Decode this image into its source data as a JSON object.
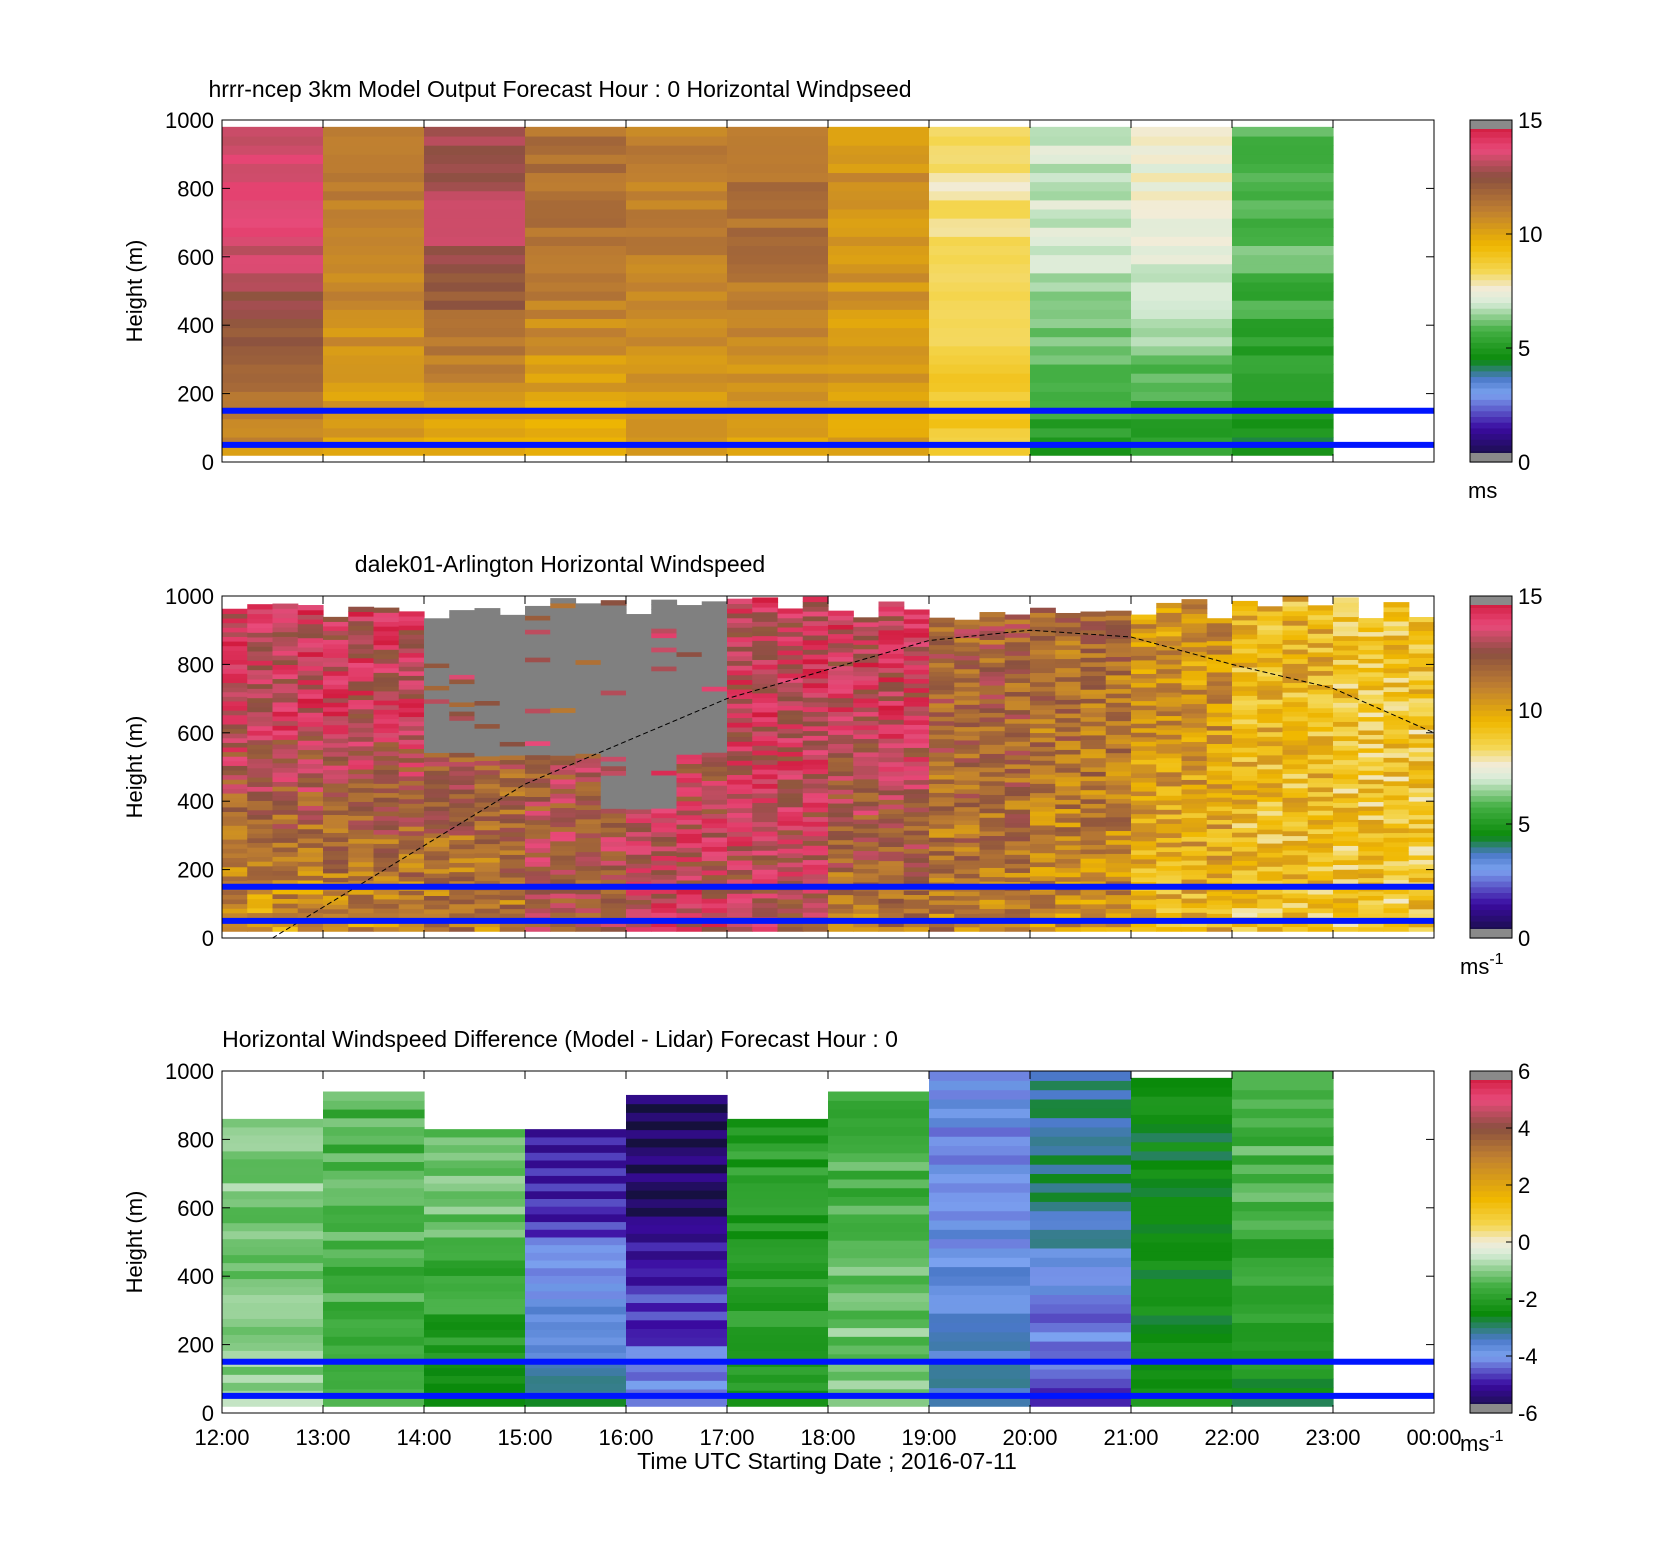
{
  "figure": {
    "xlabel": "Time UTC  Starting Date ; 2016-07-11",
    "xticks": [
      "12:00",
      "13:00",
      "14:00",
      "15:00",
      "16:00",
      "17:00",
      "18:00",
      "19:00",
      "20:00",
      "21:00",
      "22:00",
      "23:00",
      "00:00"
    ],
    "ylabel": "Height (m)",
    "yticks": [
      "0",
      "200",
      "400",
      "600",
      "800",
      "1000"
    ]
  },
  "chart_data": [
    {
      "type": "heatmap",
      "title": "hrrr-ncep 3km Model Output   Forecast Hour : 0 Horizontal Windpseed",
      "xlabel": "",
      "ylabel": "Height (m)",
      "x_range_hours": [
        12,
        24
      ],
      "ylim": [
        0,
        1000
      ],
      "colorbar": {
        "ticks": [
          "0",
          "5",
          "10",
          "15"
        ],
        "range": [
          0,
          15
        ],
        "unit": "ms"
      },
      "reference_lines_m": [
        150,
        50
      ],
      "time_columns": [
        "12:00",
        "13:00",
        "14:00",
        "15:00",
        "16:00",
        "17:00",
        "18:00",
        "19:00",
        "20:00",
        "21:00",
        "22:00"
      ],
      "mean_speed_upper_ms": [
        13.5,
        11.0,
        13.0,
        11.5,
        11.0,
        11.5,
        10.5,
        8.0,
        7.0,
        7.5,
        6.0
      ],
      "mean_speed_lower_ms": [
        10.5,
        10.0,
        9.5,
        9.5,
        10.0,
        10.0,
        10.0,
        9.0,
        5.0,
        5.0,
        4.5
      ]
    },
    {
      "type": "heatmap",
      "title": "dalek01-Arlington  Horizontal Windspeed",
      "xlabel": "",
      "ylabel": "Height (m)",
      "x_range_hours": [
        12,
        24
      ],
      "ylim": [
        0,
        1000
      ],
      "colorbar": {
        "ticks": [
          "0",
          "5",
          "10",
          "15"
        ],
        "range": [
          0,
          15
        ],
        "unit": "ms",
        "unit_exponent": "-1"
      },
      "reference_lines_m": [
        150,
        50
      ],
      "boundary_curve": {
        "hours": [
          12.5,
          15,
          17,
          19,
          20,
          21,
          22,
          23,
          24
        ],
        "height_m": [
          0,
          450,
          700,
          870,
          900,
          880,
          800,
          730,
          600
        ]
      },
      "no_data_regions": [
        {
          "from_hour": 14.0,
          "to_hour": 17.0,
          "min_height_m": 470,
          "max_height_m": 1000
        }
      ],
      "mean_speed_upper_ms": [
        13.5,
        13.5,
        12.5,
        12.5,
        13.0,
        13.5,
        13.5,
        12.0,
        11.5,
        10.5,
        9.5,
        9.0
      ],
      "mean_speed_lower_ms": [
        10.0,
        10.5,
        11.0,
        12.5,
        13.5,
        13.0,
        11.0,
        11.0,
        10.5,
        9.5,
        9.0,
        9.0
      ]
    },
    {
      "type": "heatmap",
      "title": "Horizontal Windspeed Difference (Model - Lidar) Forecast Hour : 0",
      "xlabel": "Time UTC  Starting Date ; 2016-07-11",
      "ylabel": "Height (m)",
      "x_range_hours": [
        12,
        24
      ],
      "ylim": [
        0,
        1000
      ],
      "colorbar": {
        "ticks": [
          "-6",
          "-4",
          "-2",
          "0",
          "2",
          "4",
          "6"
        ],
        "range": [
          -6,
          6
        ],
        "unit": "ms",
        "unit_exponent": "-1"
      },
      "reference_lines_m": [
        150,
        50
      ],
      "time_columns": [
        "12:00",
        "13:00",
        "14:00",
        "15:00",
        "16:00",
        "17:00",
        "18:00",
        "19:00",
        "20:00",
        "21:00",
        "22:00"
      ],
      "column_top_m": [
        860,
        940,
        830,
        830,
        930,
        860,
        940,
        1000,
        1000,
        980,
        1000
      ],
      "mean_diff_upper_ms": [
        -1.0,
        -1.5,
        -1.2,
        -5.0,
        -5.5,
        -2.0,
        -1.5,
        -4.0,
        -3.0,
        -2.5,
        -1.5
      ],
      "mean_diff_lower_ms": [
        -1.0,
        -1.5,
        -2.5,
        -3.0,
        -4.0,
        -2.0,
        -1.0,
        -3.0,
        -5.0,
        -2.5,
        -2.5
      ]
    }
  ]
}
